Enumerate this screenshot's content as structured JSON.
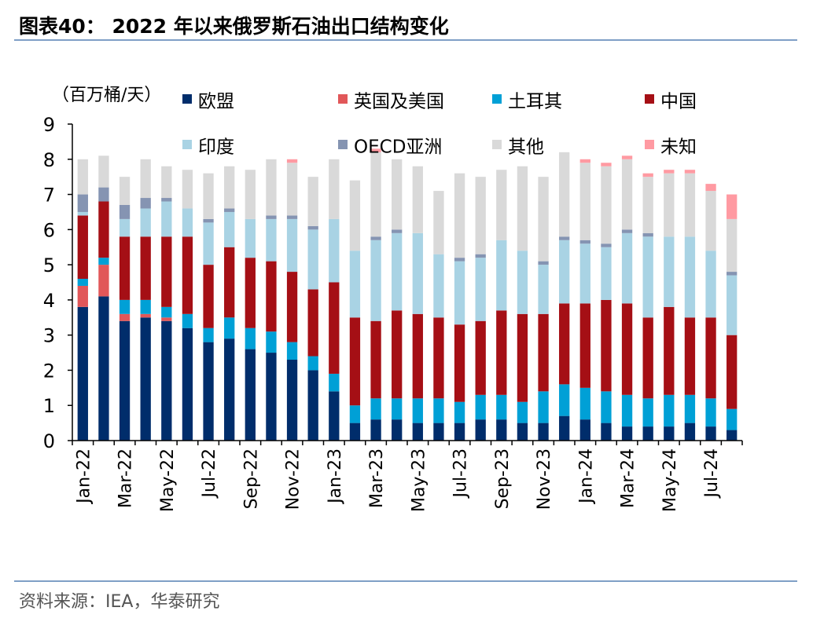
{
  "title": "图表40：  2022 年以来俄罗斯石油出口结构变化",
  "source": "资料来源：IEA，华泰研究",
  "chart_data": {
    "type": "bar",
    "stacked": true,
    "unit_label": "（百万桶/天）",
    "ylim": [
      0,
      9
    ],
    "y_ticks": [
      "0",
      "1",
      "2",
      "3",
      "4",
      "5",
      "6",
      "7",
      "8",
      "9"
    ],
    "x_tick_labels": [
      "Jan-22",
      "Mar-22",
      "May-22",
      "Jul-22",
      "Sep-22",
      "Nov-22",
      "Jan-23",
      "Mar-23",
      "May-23",
      "Jul-23",
      "Sep-23",
      "Nov-23",
      "Jan-24",
      "Mar-24",
      "May-24",
      "Jul-24"
    ],
    "categories": [
      "Jan-22",
      "Feb-22",
      "Mar-22",
      "Apr-22",
      "May-22",
      "Jun-22",
      "Jul-22",
      "Aug-22",
      "Sep-22",
      "Oct-22",
      "Nov-22",
      "Dec-22",
      "Jan-23",
      "Feb-23",
      "Mar-23",
      "Apr-23",
      "May-23",
      "Jun-23",
      "Jul-23",
      "Aug-23",
      "Sep-23",
      "Oct-23",
      "Nov-23",
      "Dec-23",
      "Jan-24",
      "Feb-24",
      "Mar-24",
      "Apr-24",
      "May-24",
      "Jun-24",
      "Jul-24",
      "Aug-24"
    ],
    "series": [
      {
        "name": "欧盟",
        "color": "#002d6b",
        "values": [
          3.8,
          4.1,
          3.4,
          3.5,
          3.4,
          3.2,
          2.8,
          2.9,
          2.6,
          2.5,
          2.3,
          2.0,
          1.4,
          0.5,
          0.6,
          0.6,
          0.5,
          0.5,
          0.5,
          0.6,
          0.6,
          0.5,
          0.5,
          0.7,
          0.6,
          0.5,
          0.4,
          0.4,
          0.4,
          0.5,
          0.4,
          0.3
        ]
      },
      {
        "name": "英国及美国",
        "color": "#e15759",
        "values": [
          0.6,
          0.9,
          0.2,
          0.1,
          0.1,
          0,
          0,
          0,
          0,
          0,
          0,
          0,
          0,
          0,
          0,
          0,
          0,
          0,
          0,
          0,
          0,
          0,
          0,
          0,
          0,
          0,
          0,
          0,
          0,
          0,
          0,
          0
        ]
      },
      {
        "name": "土耳其",
        "color": "#00a0d6",
        "values": [
          0.2,
          0.2,
          0.4,
          0.4,
          0.3,
          0.4,
          0.4,
          0.6,
          0.6,
          0.6,
          0.5,
          0.4,
          0.5,
          0.5,
          0.6,
          0.6,
          0.7,
          0.7,
          0.6,
          0.7,
          0.7,
          0.6,
          0.9,
          0.9,
          0.9,
          0.9,
          0.9,
          0.8,
          0.9,
          0.8,
          0.8,
          0.6
        ]
      },
      {
        "name": "中国",
        "color": "#a50f15",
        "values": [
          1.8,
          1.6,
          1.8,
          1.8,
          2.0,
          2.2,
          1.8,
          2.0,
          2.0,
          2.0,
          2.0,
          1.9,
          2.6,
          2.5,
          2.2,
          2.5,
          2.4,
          2.3,
          2.2,
          2.1,
          2.4,
          2.5,
          2.2,
          2.3,
          2.4,
          2.6,
          2.6,
          2.3,
          2.5,
          2.2,
          2.3,
          2.1
        ]
      },
      {
        "name": "印度",
        "color": "#a9d3e4",
        "values": [
          0.1,
          0,
          0.5,
          0.8,
          1.0,
          0.8,
          1.2,
          1.0,
          1.1,
          1.2,
          1.5,
          1.7,
          1.8,
          1.9,
          2.3,
          2.2,
          2.3,
          1.8,
          1.8,
          1.8,
          2.0,
          1.8,
          1.4,
          1.8,
          1.7,
          1.5,
          2.0,
          2.3,
          2.0,
          2.3,
          1.9,
          1.7
        ]
      },
      {
        "name": "OECD亚洲",
        "color": "#8594b2",
        "values": [
          0.5,
          0.4,
          0.4,
          0.3,
          0.1,
          0,
          0.1,
          0.1,
          0,
          0.1,
          0.1,
          0.1,
          0,
          0,
          0.1,
          0.1,
          0,
          0,
          0.1,
          0.1,
          0,
          0,
          0.1,
          0.1,
          0.1,
          0.1,
          0.1,
          0.1,
          0,
          0,
          0,
          0.1
        ]
      },
      {
        "name": "其他",
        "color": "#d9d9d9",
        "values": [
          1.0,
          0.9,
          0.8,
          1.1,
          0.9,
          1.1,
          1.3,
          1.2,
          1.4,
          1.6,
          1.5,
          1.4,
          1.7,
          2.0,
          2.4,
          2.0,
          1.9,
          1.8,
          2.4,
          2.2,
          2.0,
          2.4,
          2.4,
          2.4,
          2.2,
          2.2,
          2.0,
          1.6,
          1.8,
          1.8,
          1.7,
          1.5
        ]
      },
      {
        "name": "未知",
        "color": "#ff9aa2",
        "values": [
          0,
          0,
          0,
          0,
          0,
          0,
          0,
          0,
          0,
          0,
          0.1,
          0,
          0,
          0,
          0.1,
          0,
          0,
          0,
          0,
          0,
          0,
          0,
          0,
          0,
          0.1,
          0.1,
          0.1,
          0.1,
          0.1,
          0.1,
          0.2,
          0.7
        ]
      }
    ],
    "legend_placement": "top, inside plot, 4 columns × 2 rows",
    "grid": false
  }
}
